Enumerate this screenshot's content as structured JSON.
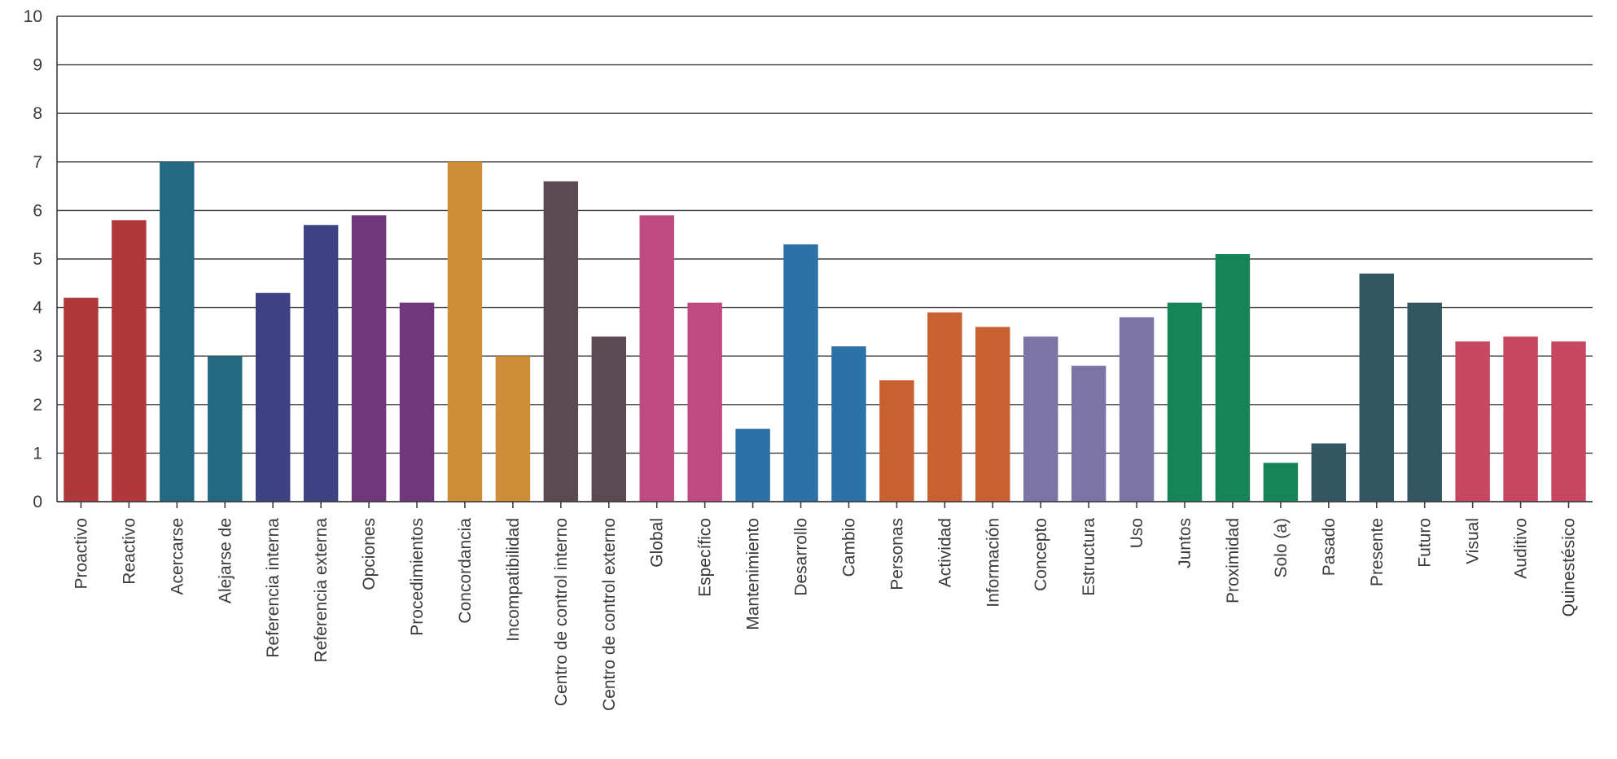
{
  "chart_data": {
    "type": "bar",
    "title": "",
    "xlabel": "",
    "ylabel": "",
    "ylim": [
      0,
      10
    ],
    "yticks": [
      0,
      1,
      2,
      3,
      4,
      5,
      6,
      7,
      8,
      9,
      10
    ],
    "grid": true,
    "legend": "none",
    "categories": [
      "Proactivo",
      "Reactivo",
      "Acercarse",
      "Alejarse de",
      "Referencia interna",
      "Referencia externa",
      "Opciones",
      "Procedimientos",
      "Concordancia",
      "Incompatibilidad",
      "Centro de control interno",
      "Centro de control externo",
      "Global",
      "Específico",
      "Mantenimiento",
      "Desarrollo",
      "Cambio",
      "Personas",
      "Actividad",
      "Información",
      "Concepto",
      "Estructura",
      "Uso",
      "Juntos",
      "Proximidad",
      "Solo (a)",
      "Pasado",
      "Presente",
      "Futuro",
      "Visual",
      "Auditivo",
      "Quinestésico"
    ],
    "values": [
      4.2,
      5.8,
      7.0,
      3.0,
      4.3,
      5.7,
      5.9,
      4.1,
      7.0,
      3.0,
      6.6,
      3.4,
      5.9,
      4.1,
      1.5,
      5.3,
      3.2,
      2.5,
      3.9,
      3.6,
      3.4,
      2.8,
      3.8,
      4.1,
      5.1,
      0.8,
      1.2,
      4.7,
      4.1,
      3.3,
      3.4,
      3.3
    ],
    "colors": [
      "#b0373c",
      "#b0373c",
      "#236982",
      "#236982",
      "#3d4282",
      "#3d4282",
      "#70377c",
      "#70377c",
      "#d08d38",
      "#d08d38",
      "#5b4a52",
      "#5b4a52",
      "#bf4a82",
      "#bf4a82",
      "#2a72a8",
      "#2a72a8",
      "#2a72a8",
      "#c8612f",
      "#c8612f",
      "#c8612f",
      "#7c74a5",
      "#7c74a5",
      "#7c74a5",
      "#168456",
      "#168456",
      "#168456",
      "#345663",
      "#345663",
      "#345663",
      "#c74760",
      "#c74760",
      "#c74760"
    ]
  }
}
